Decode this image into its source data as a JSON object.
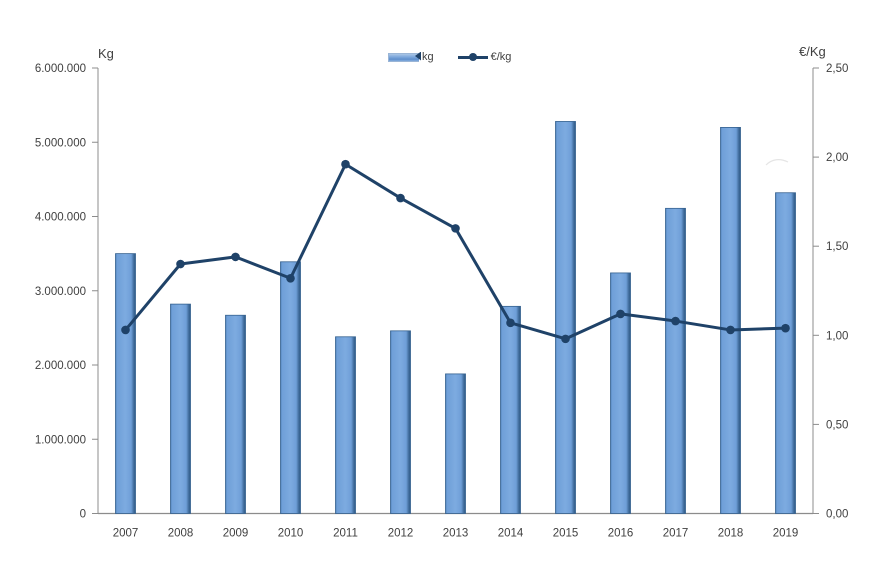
{
  "legend": {
    "items": [
      {
        "label": "kg",
        "type": "bar"
      },
      {
        "label": "€/kg",
        "type": "line"
      }
    ]
  },
  "chart_data": {
    "type": "combo",
    "title": "",
    "categories": [
      "2007",
      "2008",
      "2009",
      "2010",
      "2011",
      "2012",
      "2013",
      "2014",
      "2015",
      "2016",
      "2017",
      "2018",
      "2019"
    ],
    "series": [
      {
        "name": "kg",
        "type": "bar",
        "axis": "left",
        "values": [
          3500000,
          2820000,
          2670000,
          3390000,
          2380000,
          2460000,
          1880000,
          2790000,
          5280000,
          3240000,
          4110000,
          5200000,
          4320000
        ]
      },
      {
        "name": "€/kg",
        "type": "line",
        "axis": "right",
        "values": [
          1.03,
          1.4,
          1.44,
          1.32,
          1.96,
          1.77,
          1.6,
          1.07,
          0.98,
          1.12,
          1.08,
          1.03,
          1.04
        ]
      }
    ],
    "left_axis": {
      "title": "Kg",
      "min": 0,
      "max": 6000000,
      "tick_labels": [
        "0",
        "1.000.000",
        "2.000.000",
        "3.000.000",
        "4.000.000",
        "5.000.000",
        "6.000.000"
      ]
    },
    "right_axis": {
      "title": "€/Kg",
      "min": 0,
      "max": 2.5,
      "tick_labels": [
        "0,00",
        "0,50",
        "1,00",
        "1,50",
        "2,00",
        "2,50"
      ]
    },
    "grid": false,
    "legend_position": "top-center"
  },
  "colors": {
    "bar_fill_mid": "#7dabe0",
    "bar_fill_light": "#6f9fd8",
    "bar_fill_dark": "#2e5a86",
    "bar_edge": "#4f81ba",
    "bar_border": "#35618f",
    "line": "#1f4268",
    "axis": "#8c8c8c",
    "text": "#3f3f3f"
  }
}
